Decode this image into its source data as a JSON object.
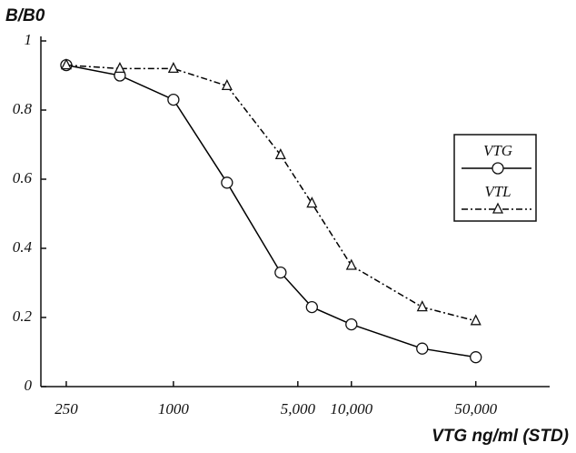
{
  "chart_data": {
    "type": "line",
    "title": "B/B0",
    "x_label": "VTG ng/ml (STD)",
    "x": [
      250,
      500,
      1000,
      2000,
      4000,
      6000,
      10000,
      25000,
      50000
    ],
    "series": [
      {
        "name": "VTG",
        "color": "#000000",
        "marker": "circle",
        "values": [
          0.93,
          0.9,
          0.83,
          0.59,
          0.33,
          0.23,
          0.18,
          0.11,
          0.085
        ]
      },
      {
        "name": "VTL",
        "color": "#000000",
        "marker": "triangle",
        "values": [
          0.93,
          0.92,
          0.92,
          0.87,
          0.67,
          0.53,
          0.35,
          0.23,
          0.19
        ]
      }
    ],
    "xlim": [
      180,
      130000
    ],
    "x_log": true,
    "xticks": [
      250,
      1000,
      {
        "value": 5000,
        "label": "5,000"
      },
      {
        "value": 10000,
        "label": "10,000"
      },
      {
        "value": 50000,
        "label": "50,000"
      }
    ],
    "ylim": [
      0,
      1
    ],
    "yticks": [
      0,
      0.2,
      0.4,
      0.6,
      0.8,
      1
    ],
    "grid": false
  }
}
